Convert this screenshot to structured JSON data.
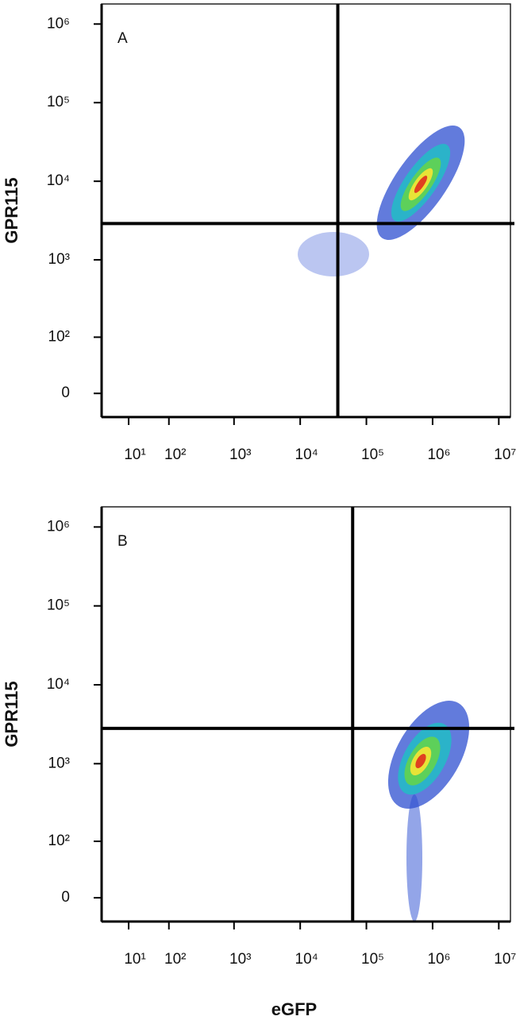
{
  "chart_data": [
    {
      "type": "density",
      "panel_label": "A",
      "ylabel": "GPR115",
      "scale": "biexponential",
      "xlim": [
        -30,
        15000000
      ],
      "ylim": [
        -30,
        1800000
      ],
      "xticks": [
        {
          "value": 10,
          "label": "10¹"
        },
        {
          "value": 100,
          "label": "10²"
        },
        {
          "value": 1000,
          "label": "10³"
        },
        {
          "value": 10000,
          "label": "10⁴"
        },
        {
          "value": 100000,
          "label": "10⁵"
        },
        {
          "value": 1000000,
          "label": "10⁶"
        },
        {
          "value": 10000000,
          "label": "10⁷"
        }
      ],
      "yticks": [
        0,
        {
          "value": 100,
          "label": "10²"
        },
        {
          "value": 1000,
          "label": "10³"
        },
        {
          "value": 10000,
          "label": "10⁴"
        },
        {
          "value": 100000,
          "label": "10⁵"
        },
        {
          "value": 1000000,
          "label": "10⁶"
        }
      ],
      "gate_x": 37000,
      "gate_y": 2900
    },
    {
      "type": "density",
      "panel_label": "B",
      "ylabel": "GPR115",
      "xlabel": "eGFP",
      "scale": "biexponential",
      "xlim": [
        -30,
        15000000
      ],
      "ylim": [
        -30,
        1800000
      ],
      "xticks": [
        {
          "value": 10,
          "label": "10¹"
        },
        {
          "value": 100,
          "label": "10²"
        },
        {
          "value": 1000,
          "label": "10³"
        },
        {
          "value": 10000,
          "label": "10⁴"
        },
        {
          "value": 100000,
          "label": "10⁵"
        },
        {
          "value": 1000000,
          "label": "10⁶"
        },
        {
          "value": 10000000,
          "label": "10⁷"
        }
      ],
      "yticks": [
        0,
        {
          "value": 100,
          "label": "10²"
        },
        {
          "value": 1000,
          "label": "10³"
        },
        {
          "value": 10000,
          "label": "10⁴"
        },
        {
          "value": 100000,
          "label": "10⁵"
        },
        {
          "value": 1000000,
          "label": "10⁶"
        }
      ],
      "gate_x": 62000,
      "gate_y": 2800
    }
  ]
}
